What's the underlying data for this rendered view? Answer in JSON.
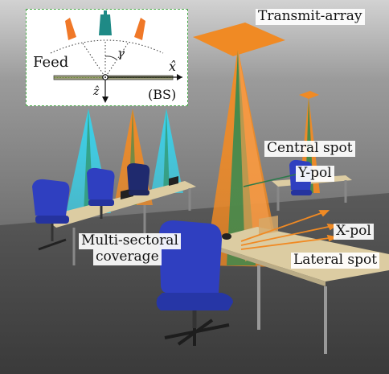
{
  "inset": {
    "feed_label": "Feed",
    "x_axis_label": "x̂",
    "z_axis_label": "ẑ",
    "gamma_label": "γ",
    "bs_label": "(BS)"
  },
  "labels": {
    "transmit_array": "Transmit-array",
    "central_spot": "Central spot",
    "y_pol": "Y-pol",
    "x_pol": "X-pol",
    "lateral_spot": "Lateral spot",
    "multi_sectoral_line1": "Multi-sectoral",
    "multi_sectoral_line2": "coverage"
  },
  "colors": {
    "beam_cyan": "#35d4ee",
    "beam_orange": "#f28a28",
    "beam_green": "#2c8a52",
    "chair_blue": "#2f3fc0",
    "desk": "#d9c9a0",
    "floor": "#474747",
    "feed_orange": "#f07828",
    "feed_teal": "#1e8a86"
  }
}
